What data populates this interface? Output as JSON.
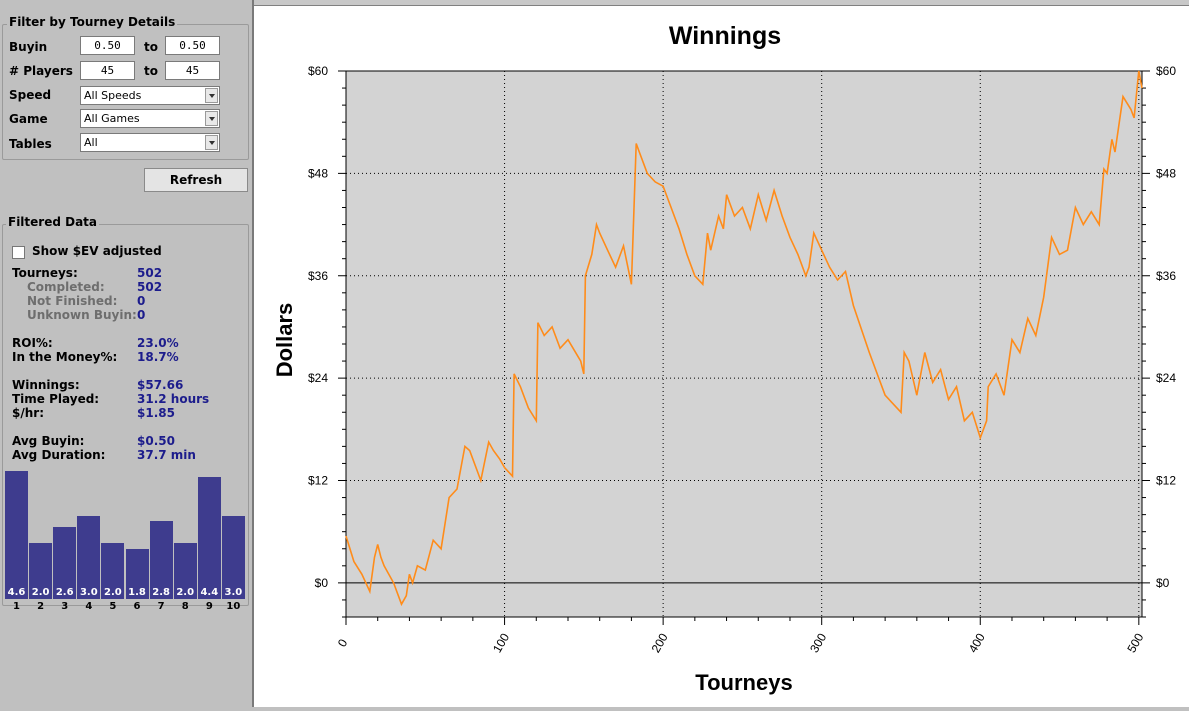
{
  "filter": {
    "title": "Filter by Tourney Details",
    "buyin": {
      "label": "Buyin",
      "from": "0.50",
      "to_label": "to",
      "to": "0.50"
    },
    "players": {
      "label": "# Players",
      "from": "45",
      "to_label": "to",
      "to": "45"
    },
    "speed": {
      "label": "Speed",
      "value": "All Speeds"
    },
    "game": {
      "label": "Game",
      "value": "All Games"
    },
    "tables": {
      "label": "Tables",
      "value": "All"
    },
    "refresh_label": "Refresh"
  },
  "filtered": {
    "title": "Filtered Data",
    "ev_checkbox_label": "Show $EV adjusted",
    "stats": {
      "tourneys_label": "Tourneys:",
      "tourneys": "502",
      "completed_label": "Completed:",
      "completed": "502",
      "not_finished_label": "Not Finished:",
      "not_finished": "0",
      "unknown_buyin_label": "Unknown Buyin:",
      "unknown_buyin": "0",
      "roi_label": "ROI%:",
      "roi": "23.0%",
      "itm_label": "In the Money%:",
      "itm": "18.7%",
      "winnings_label": "Winnings:",
      "winnings": "$57.66",
      "time_played_label": "Time Played:",
      "time_played": "31.2 hours",
      "per_hour_label": "$/hr:",
      "per_hour": "$1.85",
      "avg_buyin_label": "Avg Buyin:",
      "avg_buyin": "$0.50",
      "avg_duration_label": "Avg Duration:",
      "avg_duration": "37.7 min"
    },
    "finish_histogram": {
      "positions": [
        "1",
        "2",
        "3",
        "4",
        "5",
        "6",
        "7",
        "8",
        "9",
        "10"
      ],
      "values": [
        "4.6",
        "2.0",
        "2.6",
        "3.0",
        "2.0",
        "1.8",
        "2.8",
        "2.0",
        "4.4",
        "3.0"
      ]
    }
  },
  "chart_data": {
    "type": "line",
    "title": "Winnings",
    "xlabel": "Tourneys",
    "ylabel": "Dollars",
    "xlim": [
      0,
      502
    ],
    "ylim": [
      -4,
      60
    ],
    "x_ticks": [
      "0",
      "100",
      "200",
      "300",
      "400",
      "500"
    ],
    "y_ticks": [
      "$0",
      "$12",
      "$24",
      "$36",
      "$48",
      "$60"
    ],
    "grid": true,
    "series": [
      {
        "color": "#ff8c1a",
        "x": [
          0,
          5,
          10,
          15,
          18,
          20,
          22,
          24,
          30,
          35,
          38,
          40,
          42,
          45,
          50,
          55,
          60,
          65,
          70,
          75,
          78,
          85,
          90,
          93,
          97,
          100,
          105,
          106,
          110,
          115,
          120,
          121,
          125,
          130,
          135,
          140,
          148,
          150,
          151,
          155,
          158,
          160,
          165,
          170,
          175,
          180,
          183,
          185,
          190,
          195,
          200,
          205,
          210,
          215,
          220,
          225,
          228,
          230,
          235,
          238,
          240,
          245,
          250,
          255,
          260,
          265,
          270,
          275,
          280,
          285,
          290,
          292,
          295,
          300,
          305,
          310,
          315,
          320,
          330,
          340,
          350,
          352,
          355,
          360,
          365,
          370,
          375,
          380,
          385,
          390,
          395,
          400,
          404,
          405,
          410,
          415,
          420,
          425,
          430,
          435,
          440,
          445,
          450,
          455,
          460,
          465,
          470,
          475,
          478,
          480,
          483,
          485,
          490,
          495,
          497,
          500,
          502
        ],
        "y": [
          5.5,
          2.5,
          1,
          -1,
          3,
          4.5,
          3,
          2,
          0,
          -2.5,
          -1.5,
          1,
          0,
          2,
          1.5,
          5,
          4,
          10,
          11,
          16,
          15.5,
          12,
          16.5,
          15.5,
          14.5,
          13.5,
          12.5,
          24.5,
          23,
          20.5,
          19,
          30.5,
          29,
          30,
          27.5,
          28.5,
          26,
          24.5,
          36,
          38.5,
          42,
          41,
          39,
          37,
          39.5,
          35,
          51.5,
          50.5,
          48,
          47,
          46.5,
          44,
          41.5,
          38.5,
          36,
          35,
          41,
          39,
          43,
          41.5,
          45.5,
          43,
          44,
          41.5,
          45.5,
          42.5,
          46,
          43,
          40.5,
          38.5,
          36,
          37,
          41,
          39,
          37,
          35.5,
          36.5,
          32.5,
          27,
          22,
          20,
          27,
          26,
          22,
          27,
          23.5,
          25,
          21.5,
          23,
          19,
          20,
          17,
          19,
          23,
          24.5,
          22,
          28.5,
          27,
          31,
          29,
          33.5,
          40.5,
          38.5,
          39,
          44,
          42,
          43.5,
          42,
          48.5,
          48,
          52,
          50.5,
          57,
          55.5,
          54.5,
          60,
          58
        ]
      }
    ]
  }
}
